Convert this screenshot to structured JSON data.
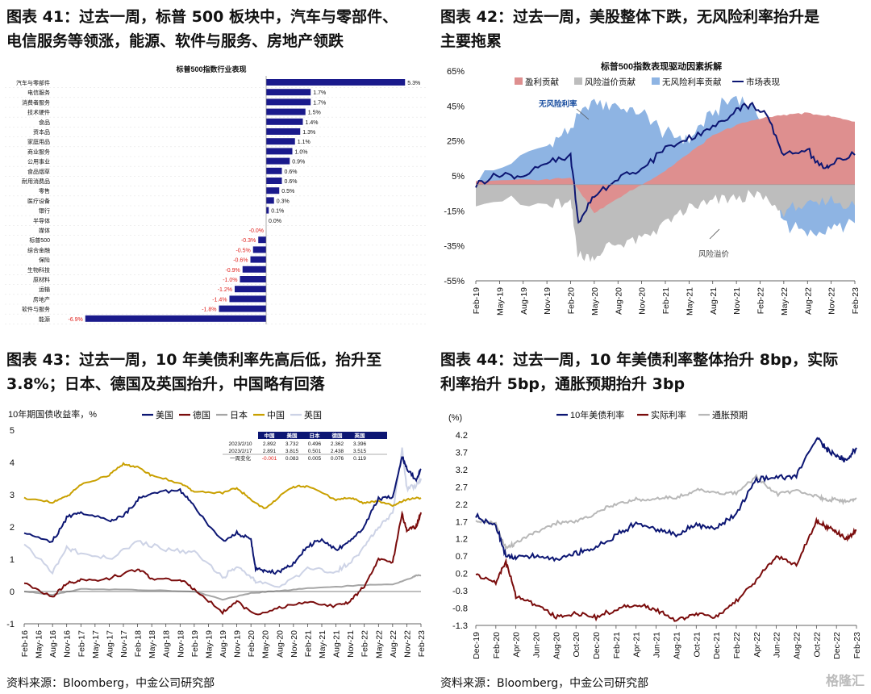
{
  "panels": {
    "p41": {
      "title_line1": "图表 41：过去一周，标普 500 板块中，汽车与零部件、",
      "title_line2": "电信服务等领涨，能源、软件与服务、房地产领跌"
    },
    "p42": {
      "title_line1": "图表  42：过去一周，美股整体下跌，无风险利率抬升是",
      "title_line2": "主要拖累"
    },
    "p43": {
      "title_line1": "图表  43：过去一周，10  年美债利率先高后低，抬升至",
      "title_line2": "3.8%；日本、德国及英国抬升，中国略有回落"
    },
    "p44": {
      "title_line1": "图表 44：过去一周，10 年美债利率整体抬升 8bp，实际",
      "title_line2": "利率抬升 5bp，通胀预期抬升 3bp"
    }
  },
  "sources": {
    "left": "资料来源：Bloomberg，中金公司研究部",
    "right": "资料来源：Bloomberg，中金公司研究部"
  },
  "watermark": "格隆汇",
  "chart_data": [
    {
      "type": "bar",
      "orientation": "horizontal",
      "title": "标普500指数行业表现",
      "categories": [
        "汽车与零部件",
        "电信服务",
        "消费者服务",
        "技术硬件",
        "食品",
        "资本品",
        "家庭用品",
        "商业服务",
        "公用事业",
        "食品烟草",
        "耐用消费品",
        "零售",
        "医疗设备",
        "银行",
        "半导体",
        "媒体",
        "标普500",
        "综合金融",
        "保险",
        "生物科技",
        "原材料",
        "运输",
        "房地产",
        "软件与服务",
        "能源"
      ],
      "values": [
        5.3,
        1.7,
        1.7,
        1.5,
        1.4,
        1.3,
        1.1,
        1.0,
        0.9,
        0.6,
        0.6,
        0.5,
        0.3,
        0.1,
        0.0,
        -0.0,
        -0.3,
        -0.5,
        -0.6,
        -0.9,
        -1.0,
        -1.2,
        -1.4,
        -1.8,
        -6.9
      ],
      "labels": [
        "5.3%",
        "1.7%",
        "1.7%",
        "1.5%",
        "1.4%",
        "1.3%",
        "1.1%",
        "1.0%",
        "0.9%",
        "0.6%",
        "0.6%",
        "0.5%",
        "0.3%",
        "0.1%",
        "0.0%",
        "-0.0%",
        "-0.3%",
        "-0.5%",
        "-0.6%",
        "-0.9%",
        "-1.0%",
        "-1.2%",
        "-1.4%",
        "-1.8%",
        "-6.9%"
      ],
      "colors": {
        "bar": "#1a1a8c",
        "neg_label": "#e0201c",
        "pos_label": "#111111"
      }
    },
    {
      "type": "area",
      "title": "标普500指数表现驱动因素拆解",
      "legend": [
        "盈利贡献",
        "风险溢价贡献",
        "无风险利率贡献",
        "市场表现"
      ],
      "colors": {
        "earnings": "#de8f8f",
        "premium": "#bdbdbd",
        "riskfree": "#8eb4e3",
        "market": "#0c1673"
      },
      "yticks": [
        "65%",
        "45%",
        "25%",
        "5%",
        "-15%",
        "-35%",
        "-55%"
      ],
      "ylim": [
        -55,
        65
      ],
      "xticks": [
        "Feb-19",
        "May-19",
        "Aug-19",
        "Nov-19",
        "Feb-20",
        "May-20",
        "Aug-20",
        "Nov-20",
        "Feb-21",
        "May-21",
        "Aug-21",
        "Nov-21",
        "Feb-22",
        "May-22",
        "Aug-22",
        "Nov-22",
        "Feb-23"
      ],
      "annotations": [
        "无风险利率",
        "风险溢价"
      ],
      "series": [
        {
          "name": "市场表现",
          "x": [
            "Feb-19",
            "May-19",
            "Aug-19",
            "Nov-19",
            "Feb-20",
            "Mar-20",
            "May-20",
            "Aug-20",
            "Nov-20",
            "Feb-21",
            "May-21",
            "Aug-21",
            "Nov-21",
            "Jan-22",
            "Mar-22",
            "May-22",
            "Aug-22",
            "Oct-22",
            "Nov-22",
            "Feb-23"
          ],
          "values": [
            0,
            6,
            5,
            12,
            17,
            -22,
            -6,
            4,
            8,
            21,
            27,
            32,
            43,
            46,
            38,
            17,
            20,
            9,
            12,
            17
          ]
        },
        {
          "name": "盈利贡献",
          "x": [
            "Feb-19",
            "Nov-19",
            "Feb-20",
            "May-20",
            "Aug-20",
            "Nov-20",
            "Feb-21",
            "May-21",
            "Aug-21",
            "Nov-21",
            "Feb-22",
            "May-22",
            "Aug-22",
            "Nov-22",
            "Feb-23"
          ],
          "values": [
            2,
            3,
            4,
            -16,
            -8,
            0,
            8,
            18,
            28,
            34,
            38,
            40,
            41,
            39,
            36
          ]
        },
        {
          "name": "风险溢价贡献",
          "x": [
            "Feb-19",
            "Nov-19",
            "Feb-20",
            "Mar-20",
            "May-20",
            "Aug-20",
            "Nov-20",
            "Feb-21",
            "May-21",
            "Aug-21",
            "Nov-21",
            "Feb-22",
            "May-22",
            "Aug-22",
            "Nov-22",
            "Feb-23"
          ],
          "values": [
            -8,
            -12,
            -10,
            -42,
            -40,
            -34,
            -30,
            -22,
            -14,
            -10,
            -8,
            -6,
            -15,
            -12,
            -8,
            -12
          ]
        },
        {
          "name": "无风险利率贡献",
          "x": [
            "Feb-19",
            "Nov-19",
            "Feb-20",
            "May-20",
            "Aug-20",
            "Nov-20",
            "Feb-21",
            "May-21",
            "Aug-21",
            "Nov-21",
            "Feb-22",
            "May-22",
            "Aug-22",
            "Nov-22",
            "Feb-23"
          ],
          "values": [
            3,
            22,
            32,
            48,
            45,
            40,
            30,
            25,
            42,
            50,
            40,
            -22,
            -28,
            -25,
            -22
          ]
        }
      ]
    },
    {
      "type": "line",
      "ylabel": "10年期国债收益率，%",
      "legend": [
        "美国",
        "德国",
        "日本",
        "中国",
        "英国"
      ],
      "colors": {
        "美国": "#0c1673",
        "德国": "#7a0c0c",
        "日本": "#a6a6a6",
        "中国": "#c9a000",
        "英国": "#cdd3e6"
      },
      "ylim": [
        -1,
        5
      ],
      "yticks": [
        "5",
        "4",
        "3",
        "2",
        "1",
        "0",
        "-1"
      ],
      "xticks": [
        "Feb-16",
        "May-16",
        "Aug-16",
        "Nov-16",
        "Feb-17",
        "May-17",
        "Aug-17",
        "Nov-17",
        "Feb-18",
        "May-18",
        "Aug-18",
        "Nov-18",
        "Feb-19",
        "May-19",
        "Aug-19",
        "Nov-19",
        "Feb-20",
        "May-20",
        "Aug-20",
        "Nov-20",
        "Feb-21",
        "May-21",
        "Aug-21",
        "Nov-21",
        "Feb-22",
        "May-22",
        "Aug-22",
        "Nov-22",
        "Feb-23"
      ],
      "table": {
        "headers": [
          "",
          "中国",
          "美国",
          "日本",
          "德国",
          "英国"
        ],
        "rows": [
          [
            "2023/2/10",
            "2.892",
            "3.732",
            "0.496",
            "2.362",
            "3.396"
          ],
          [
            "2023/2/17",
            "2.891",
            "3.815",
            "0.501",
            "2.438",
            "3.515"
          ],
          [
            "一周变化",
            "-0.001",
            "0.083",
            "0.005",
            "0.076",
            "0.119"
          ]
        ]
      },
      "series": [
        {
          "name": "美国",
          "x": [
            "Feb-16",
            "Aug-16",
            "Nov-16",
            "Feb-17",
            "Aug-17",
            "Nov-17",
            "Feb-18",
            "May-18",
            "Nov-18",
            "Feb-19",
            "Aug-19",
            "Nov-19",
            "Feb-20",
            "Mar-20",
            "May-20",
            "Aug-20",
            "Nov-20",
            "Feb-21",
            "May-21",
            "Aug-21",
            "Nov-21",
            "Feb-22",
            "May-22",
            "Aug-22",
            "Oct-22",
            "Nov-22",
            "Jan-23",
            "Feb-23"
          ],
          "values": [
            1.8,
            1.55,
            2.3,
            2.45,
            2.2,
            2.35,
            2.85,
            3.05,
            3.15,
            2.65,
            1.55,
            1.8,
            1.6,
            0.7,
            0.65,
            0.6,
            0.85,
            1.4,
            1.6,
            1.3,
            1.55,
            2.0,
            2.9,
            2.9,
            4.2,
            3.8,
            3.45,
            3.8
          ]
        },
        {
          "name": "德国",
          "x": [
            "Feb-16",
            "Aug-16",
            "Nov-16",
            "Feb-17",
            "Aug-17",
            "Feb-18",
            "May-18",
            "Nov-18",
            "Feb-19",
            "Aug-19",
            "Nov-19",
            "Mar-20",
            "Aug-20",
            "Feb-21",
            "Aug-21",
            "Nov-21",
            "Feb-22",
            "May-22",
            "Aug-22",
            "Oct-22",
            "Nov-22",
            "Jan-23",
            "Feb-23"
          ],
          "values": [
            0.25,
            -0.15,
            0.25,
            0.35,
            0.4,
            0.7,
            0.4,
            0.35,
            0.1,
            -0.65,
            -0.3,
            -0.75,
            -0.5,
            -0.35,
            -0.45,
            -0.3,
            0.15,
            1.0,
            0.9,
            2.4,
            1.9,
            2.0,
            2.45
          ]
        },
        {
          "name": "日本",
          "x": [
            "Feb-16",
            "Aug-16",
            "Feb-17",
            "Feb-18",
            "Feb-19",
            "Aug-19",
            "Feb-20",
            "Aug-20",
            "Feb-21",
            "Feb-22",
            "Aug-22",
            "Dec-22",
            "Jan-23",
            "Feb-23"
          ],
          "values": [
            0.0,
            -0.1,
            0.08,
            0.05,
            0.0,
            -0.25,
            -0.05,
            0.02,
            0.1,
            0.2,
            0.22,
            0.42,
            0.5,
            0.5
          ]
        },
        {
          "name": "中国",
          "x": [
            "Feb-16",
            "Aug-16",
            "Nov-16",
            "Feb-17",
            "Aug-17",
            "Nov-17",
            "Feb-18",
            "May-18",
            "Nov-18",
            "Feb-19",
            "Aug-19",
            "Nov-19",
            "Feb-20",
            "May-20",
            "Aug-20",
            "Nov-20",
            "Feb-21",
            "Aug-21",
            "Nov-21",
            "Feb-22",
            "May-22",
            "Aug-22",
            "Nov-22",
            "Feb-23"
          ],
          "values": [
            2.9,
            2.75,
            2.95,
            3.3,
            3.6,
            3.95,
            3.85,
            3.6,
            3.35,
            3.1,
            3.05,
            3.2,
            2.85,
            2.55,
            2.95,
            3.25,
            3.25,
            2.85,
            2.9,
            2.75,
            2.8,
            2.65,
            2.85,
            2.9
          ]
        },
        {
          "name": "英国",
          "x": [
            "Feb-16",
            "Aug-16",
            "Nov-16",
            "Feb-17",
            "Aug-17",
            "Feb-18",
            "Aug-18",
            "Feb-19",
            "Aug-19",
            "Nov-19",
            "Feb-20",
            "Mar-20",
            "Aug-20",
            "Feb-21",
            "Aug-21",
            "Nov-21",
            "Feb-22",
            "May-22",
            "Aug-22",
            "Oct-22",
            "Nov-22",
            "Jan-23",
            "Feb-23"
          ],
          "values": [
            1.45,
            0.6,
            1.35,
            1.15,
            1.0,
            1.55,
            1.3,
            1.2,
            0.45,
            0.75,
            0.5,
            0.3,
            0.15,
            0.7,
            0.6,
            0.9,
            1.4,
            2.0,
            2.4,
            4.4,
            3.2,
            3.3,
            3.5
          ]
        }
      ]
    },
    {
      "type": "line",
      "ylabel": "(%)",
      "legend": [
        "10年美债利率",
        "实际利率",
        "通胀预期"
      ],
      "colors": {
        "10年美债利率": "#0c1673",
        "实际利率": "#7a0c0c",
        "通胀预期": "#b8b8b8"
      },
      "ylim": [
        -1.3,
        4.2
      ],
      "yticks": [
        "4.2",
        "3.7",
        "3.2",
        "2.7",
        "2.2",
        "1.7",
        "1.2",
        "0.7",
        "0.2",
        "-0.3",
        "-0.8",
        "-1.3"
      ],
      "xticks": [
        "Dec-19",
        "Feb-20",
        "Apr-20",
        "Jun-20",
        "Aug-20",
        "Oct-20",
        "Dec-20",
        "Feb-21",
        "Apr-21",
        "Jun-21",
        "Aug-21",
        "Oct-21",
        "Dec-21",
        "Feb-22",
        "Apr-22",
        "Jun-22",
        "Aug-22",
        "Oct-22",
        "Dec-22",
        "Feb-23"
      ],
      "series": [
        {
          "name": "10年美债利率",
          "x": [
            "Dec-19",
            "Feb-20",
            "Mar-20",
            "Apr-20",
            "Jun-20",
            "Aug-20",
            "Oct-20",
            "Dec-20",
            "Feb-21",
            "Apr-21",
            "Jun-21",
            "Aug-21",
            "Oct-21",
            "Dec-21",
            "Feb-22",
            "Apr-22",
            "Jun-22",
            "Aug-22",
            "Oct-22",
            "Nov-22",
            "Dec-22",
            "Jan-23",
            "Feb-23"
          ],
          "values": [
            1.85,
            1.6,
            0.7,
            0.65,
            0.7,
            0.6,
            0.8,
            0.95,
            1.3,
            1.65,
            1.5,
            1.3,
            1.6,
            1.5,
            1.95,
            2.9,
            3.0,
            3.0,
            4.15,
            3.8,
            3.6,
            3.45,
            3.83
          ]
        },
        {
          "name": "实际利率",
          "x": [
            "Dec-19",
            "Feb-20",
            "Mar-20",
            "Apr-20",
            "Jun-20",
            "Aug-20",
            "Oct-20",
            "Dec-20",
            "Feb-21",
            "Apr-21",
            "Jun-21",
            "Aug-21",
            "Oct-21",
            "Dec-21",
            "Feb-22",
            "Apr-22",
            "Jun-22",
            "Aug-22",
            "Oct-22",
            "Nov-22",
            "Dec-22",
            "Jan-23",
            "Feb-23"
          ],
          "values": [
            0.15,
            -0.05,
            0.55,
            -0.45,
            -0.7,
            -1.05,
            -0.95,
            -1.05,
            -0.85,
            -0.7,
            -0.85,
            -1.15,
            -0.95,
            -1.05,
            -0.6,
            0.0,
            0.7,
            0.45,
            1.7,
            1.55,
            1.4,
            1.2,
            1.45
          ]
        },
        {
          "name": "通胀预期",
          "x": [
            "Dec-19",
            "Feb-20",
            "Mar-20",
            "Apr-20",
            "Jun-20",
            "Aug-20",
            "Oct-20",
            "Dec-20",
            "Feb-21",
            "Apr-21",
            "Jun-21",
            "Aug-21",
            "Oct-21",
            "Dec-21",
            "Feb-22",
            "Apr-22",
            "Jun-22",
            "Aug-22",
            "Oct-22",
            "Nov-22",
            "Dec-22",
            "Jan-23",
            "Feb-23"
          ],
          "values": [
            1.75,
            1.65,
            0.9,
            1.1,
            1.4,
            1.65,
            1.7,
            1.95,
            2.2,
            2.35,
            2.35,
            2.4,
            2.6,
            2.55,
            2.5,
            3.0,
            2.5,
            2.6,
            2.45,
            2.3,
            2.35,
            2.25,
            2.38
          ]
        }
      ]
    }
  ]
}
